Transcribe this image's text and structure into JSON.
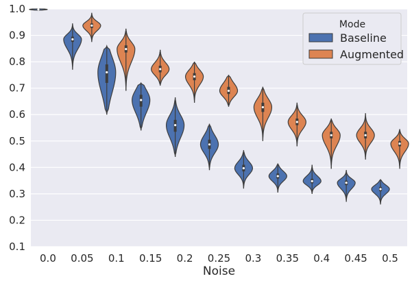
{
  "chart_data": {
    "type": "violin",
    "title": "",
    "xlabel": "Noise",
    "ylabel": "",
    "ylim": [
      0.1,
      1.0
    ],
    "yticks": [
      "0.1",
      "0.2",
      "0.3",
      "0.4",
      "0.5",
      "0.6",
      "0.7",
      "0.8",
      "0.9",
      "1.0"
    ],
    "categories": [
      "0.0",
      "0.05",
      "0.1",
      "0.15",
      "0.2",
      "0.25",
      "0.3",
      "0.35",
      "0.4",
      "0.45",
      "0.5"
    ],
    "grid": true,
    "legend": {
      "title": "Mode",
      "position": "top-right"
    },
    "series": [
      {
        "name": "Baseline",
        "color": "#4c72b0",
        "violins": [
          {
            "category": "0.0",
            "min": 0.995,
            "q1": 0.997,
            "median": 0.998,
            "q3": 0.999,
            "max": 1.0
          },
          {
            "category": "0.05",
            "min": 0.77,
            "q1": 0.875,
            "median": 0.885,
            "q3": 0.895,
            "max": 0.945
          },
          {
            "category": "0.1",
            "min": 0.6,
            "q1": 0.72,
            "median": 0.76,
            "q3": 0.79,
            "max": 0.86
          },
          {
            "category": "0.15",
            "min": 0.54,
            "q1": 0.63,
            "median": 0.655,
            "q3": 0.675,
            "max": 0.72
          },
          {
            "category": "0.2",
            "min": 0.44,
            "q1": 0.535,
            "median": 0.56,
            "q3": 0.58,
            "max": 0.665
          },
          {
            "category": "0.25",
            "min": 0.39,
            "q1": 0.47,
            "median": 0.487,
            "q3": 0.505,
            "max": 0.565
          },
          {
            "category": "0.3",
            "min": 0.32,
            "q1": 0.385,
            "median": 0.397,
            "q3": 0.41,
            "max": 0.465
          },
          {
            "category": "0.35",
            "min": 0.305,
            "q1": 0.358,
            "median": 0.367,
            "q3": 0.377,
            "max": 0.415
          },
          {
            "category": "0.4",
            "min": 0.3,
            "q1": 0.34,
            "median": 0.348,
            "q3": 0.357,
            "max": 0.41
          },
          {
            "category": "0.45",
            "min": 0.27,
            "q1": 0.333,
            "median": 0.342,
            "q3": 0.35,
            "max": 0.39
          },
          {
            "category": "0.5",
            "min": 0.26,
            "q1": 0.31,
            "median": 0.318,
            "q3": 0.326,
            "max": 0.355
          }
        ]
      },
      {
        "name": "Augmented",
        "color": "#dd8452",
        "violins": [
          {
            "category": "0.05",
            "min": 0.875,
            "q1": 0.928,
            "median": 0.937,
            "q3": 0.945,
            "max": 0.985
          },
          {
            "category": "0.1",
            "min": 0.69,
            "q1": 0.835,
            "median": 0.848,
            "q3": 0.862,
            "max": 0.925
          },
          {
            "category": "0.15",
            "min": 0.71,
            "q1": 0.76,
            "median": 0.772,
            "q3": 0.785,
            "max": 0.845
          },
          {
            "category": "0.2",
            "min": 0.645,
            "q1": 0.73,
            "median": 0.744,
            "q3": 0.757,
            "max": 0.8
          },
          {
            "category": "0.25",
            "min": 0.63,
            "q1": 0.678,
            "median": 0.69,
            "q3": 0.705,
            "max": 0.75
          },
          {
            "category": "0.3",
            "min": 0.5,
            "q1": 0.61,
            "median": 0.628,
            "q3": 0.645,
            "max": 0.705
          },
          {
            "category": "0.35",
            "min": 0.48,
            "q1": 0.56,
            "median": 0.572,
            "q3": 0.585,
            "max": 0.645
          },
          {
            "category": "0.4",
            "min": 0.395,
            "q1": 0.51,
            "median": 0.522,
            "q3": 0.535,
            "max": 0.585
          },
          {
            "category": "0.45",
            "min": 0.43,
            "q1": 0.51,
            "median": 0.522,
            "q3": 0.535,
            "max": 0.605
          },
          {
            "category": "0.5",
            "min": 0.395,
            "q1": 0.48,
            "median": 0.49,
            "q3": 0.5,
            "max": 0.545
          }
        ]
      }
    ]
  }
}
